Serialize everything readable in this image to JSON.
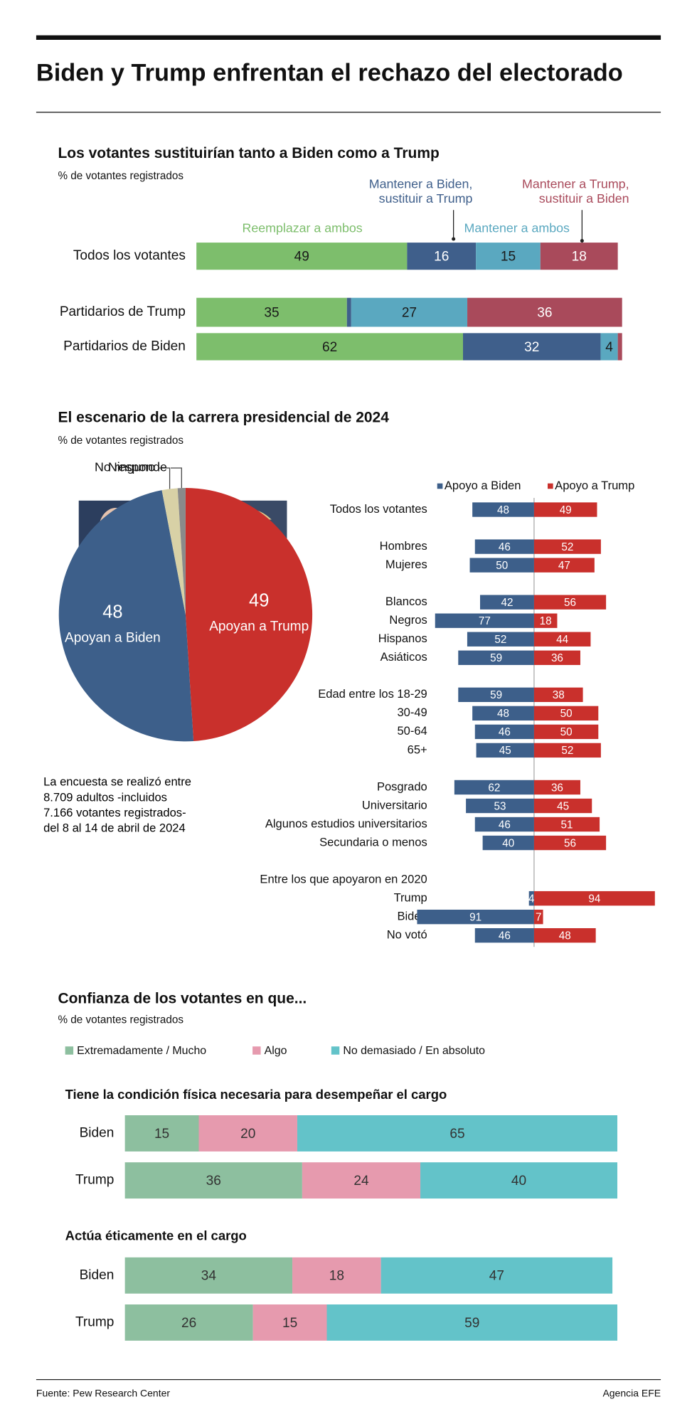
{
  "title": "Biden y Trump enfrentan el rechazo del electorado",
  "source": "Fuente: Pew Research Center",
  "credit": "Agencia EFE",
  "chart_data": [
    {
      "type": "bar",
      "orientation": "horizontal",
      "stacked": true,
      "title": "Los votantes sustituirían tanto a Biden como a Trump",
      "subtitle": "% de votantes registrados",
      "categories": [
        "Todos los votantes",
        "Partidarios de Trump",
        "Partidarios de Biden"
      ],
      "xlim": [
        0,
        100
      ],
      "series": [
        {
          "name": "Reemplazar a ambos",
          "color": "#7dbe6c",
          "values": [
            49,
            35,
            62
          ]
        },
        {
          "name": "Mantener a Biden,\nsustituir a Trump",
          "color": "#3f5f8b",
          "values": [
            16,
            1,
            32
          ],
          "value_labels": [
            "16",
            null,
            "32"
          ]
        },
        {
          "name": "Mantener a ambos",
          "color": "#5aa8c0",
          "values": [
            15,
            27,
            4
          ]
        },
        {
          "name": "Mantener a Trump,\nsustituir a Biden",
          "color": "#a94a5b",
          "values": [
            18,
            36,
            1
          ],
          "value_labels": [
            "18",
            "36",
            null
          ]
        }
      ]
    },
    {
      "type": "pie",
      "title": "El escenario de la carrera presidencial de 2024",
      "subtitle": "% de votantes registrados",
      "categories": [
        "Apoyan a Trump",
        "Apoyan a Biden",
        "Ninguno",
        "No responde"
      ],
      "values": [
        49,
        48,
        2,
        1
      ],
      "value_labels": [
        "49",
        "48",
        null,
        null
      ],
      "colors": [
        "#c9302c",
        "#3d5f8a",
        "#d8d1a6",
        "#8a8a8a"
      ],
      "annotation": "La encuesta se realizó entre\n8.709 adultos -incluidos\n7.166 votantes registrados-\ndel 8 al 14 de abril de 2024"
    },
    {
      "type": "diverging_bar",
      "categories": [
        "Todos los votantes",
        null,
        "Hombres",
        "Mujeres",
        null,
        "Blancos",
        "Negros",
        "Hispanos",
        "Asiáticos",
        null,
        "Edad entre los 18-29",
        "30-49",
        "50-64",
        "65+",
        null,
        "Posgrado",
        "Universitario",
        "Algunos estudios universitarios",
        "Secundaria o menos",
        null,
        "Entre los que apoyaron en 2020",
        "Trump",
        "Biden",
        "No votó"
      ],
      "xlim": [
        0,
        100
      ],
      "series": [
        {
          "name": "Apoyo a Biden",
          "color": "#3d5f8a",
          "values": [
            48,
            null,
            46,
            50,
            null,
            42,
            77,
            52,
            59,
            null,
            59,
            48,
            46,
            45,
            null,
            62,
            53,
            46,
            40,
            null,
            null,
            4,
            91,
            46
          ]
        },
        {
          "name": "Apoyo a Trump",
          "color": "#c9302c",
          "values": [
            49,
            null,
            52,
            47,
            null,
            56,
            18,
            44,
            36,
            null,
            38,
            50,
            50,
            52,
            null,
            36,
            45,
            51,
            56,
            null,
            null,
            94,
            7,
            48
          ]
        }
      ]
    },
    {
      "type": "bar",
      "orientation": "horizontal",
      "stacked": true,
      "title": "Confianza de los votantes en que...",
      "subtitle": "% de votantes registrados",
      "xlim": [
        0,
        100
      ],
      "series": [
        {
          "name": "Extremadamente / Mucho",
          "color": "#8dbf9f"
        },
        {
          "name": "Algo",
          "color": "#e69aae"
        },
        {
          "name": "No demasiado / En absoluto",
          "color": "#63c3c9"
        }
      ],
      "panels": [
        {
          "title": "Tiene la condición física necesaria para desempeñar el cargo",
          "categories": [
            "Biden",
            "Trump"
          ],
          "values": [
            [
              15,
              20,
              65
            ],
            [
              36,
              24,
              40
            ]
          ]
        },
        {
          "title": "Actúa éticamente en el cargo",
          "categories": [
            "Biden",
            "Trump"
          ],
          "values": [
            [
              34,
              18,
              47
            ],
            [
              26,
              15,
              59
            ]
          ]
        }
      ]
    }
  ]
}
